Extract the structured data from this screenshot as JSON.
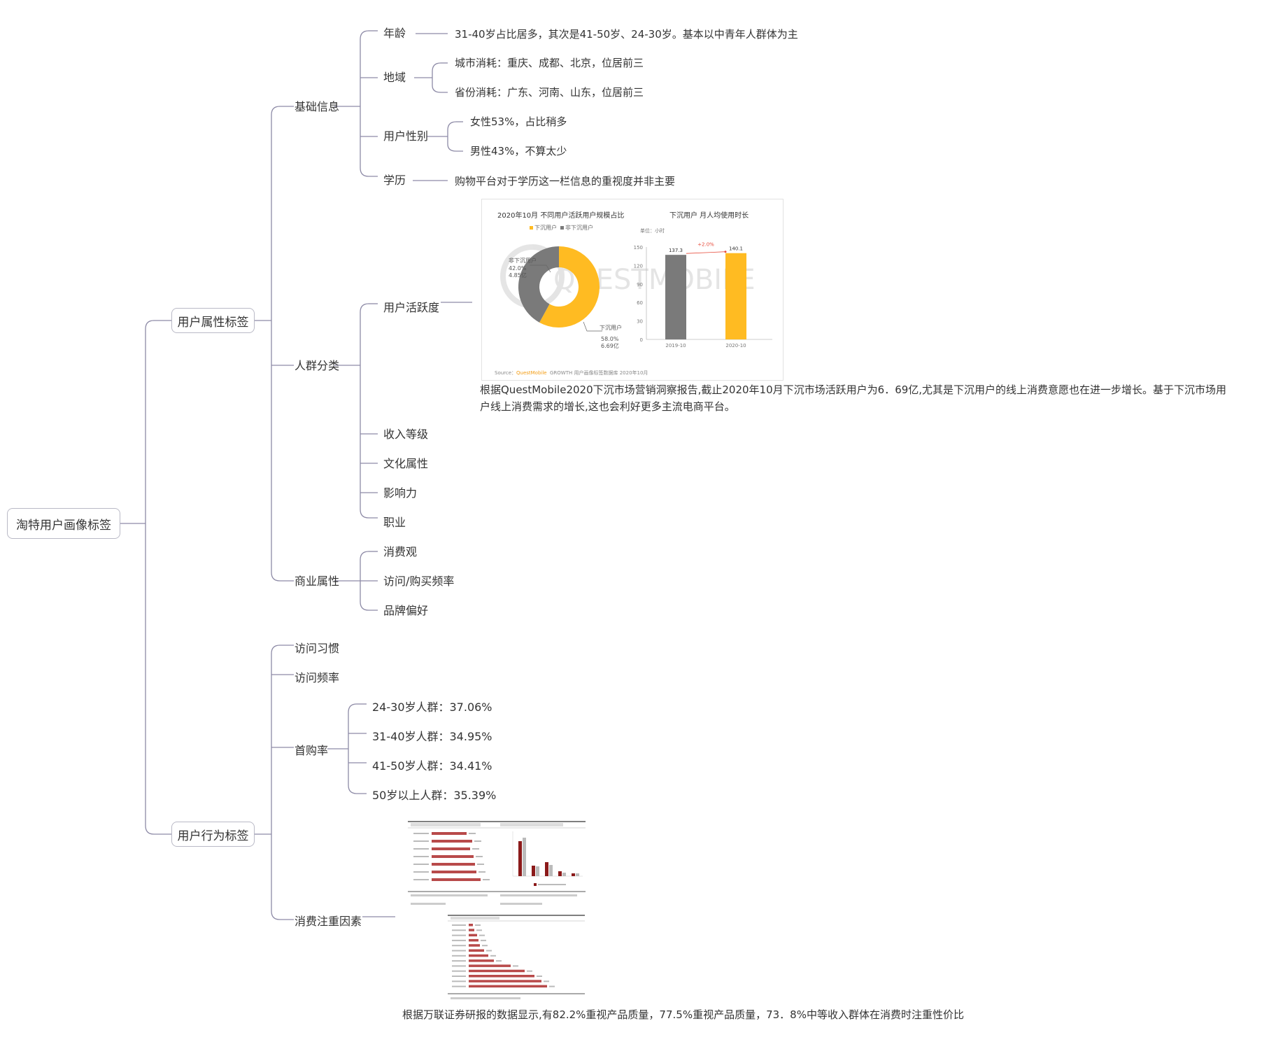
{
  "root": {
    "label": "淘特用户画像标签"
  },
  "attr": {
    "label": "用户属性标签",
    "basic": {
      "label": "基础信息",
      "age": {
        "label": "年龄",
        "note": "31-40岁占比居多，其次是41-50岁、24-30岁。基本以中青年人群体为主"
      },
      "region": {
        "label": "地域",
        "city": "城市消耗：重庆、成都、北京，位居前三",
        "province": "省份消耗：广东、河南、山东，位居前三"
      },
      "gender": {
        "label": "用户性别",
        "female": "女性53%，占比稍多",
        "male": "男性43%，不算太少"
      },
      "edu": {
        "label": "学历",
        "note": "购物平台对于学历这一栏信息的重视度并非主要"
      }
    },
    "crowd": {
      "label": "人群分类",
      "activity": {
        "label": "用户活跃度",
        "figure": {
          "donut_title": "2020年10月 不同用户活跃用户规模占比",
          "legend_sink": "下沉用户",
          "legend_nonsink": "非下沉用户",
          "nonsink_label": "非下沉用户",
          "nonsink_pct": "42.0%",
          "nonsink_val": "4.85亿",
          "sink_label": "下沉用户",
          "sink_pct": "58.0%",
          "sink_val": "6.69亿",
          "bar_title": "下沉用户 月人均使用时长",
          "unit": "单位：小时",
          "yticks": [
            "150",
            "120",
            "90",
            "60",
            "30",
            "0"
          ],
          "bar1_cat": "2019-10",
          "bar1_val": "137.3",
          "bar2_cat": "2020-10",
          "bar2_val": "140.1",
          "growth": "+2.0%",
          "watermark": "QUESTMOBILE",
          "source_prefix": "Source：",
          "source_brand": "QuestMobile",
          "source_rest": " GROWTH 用户画像标签数据库 2020年10月"
        },
        "note": "根据QuestMobile2020下沉市场营销洞察报告,截止2020年10月下沉市场活跃用户为6．69亿,尤其是下沉用户的线上消费意愿也在进一步增长。基于下沉市场用户线上消费需求的增长,这也会利好更多主流电商平台。"
      },
      "income": "收入等级",
      "culture": "文化属性",
      "influence": "影响力",
      "job": "职业"
    },
    "biz": {
      "label": "商业属性",
      "items": [
        "消费观",
        "访问/购买频率",
        "品牌偏好"
      ]
    }
  },
  "behavior": {
    "label": "用户行为标签",
    "visit_habit": "访问习惯",
    "visit_freq": "访问频率",
    "first": {
      "label": "首购率",
      "items": [
        "24-30岁人群：37.06%",
        "31-40岁人群：34.95%",
        "41-50岁人群：34.41%",
        "50岁以上人群：35.39%"
      ]
    },
    "factors": {
      "label": "消费注重因素",
      "note": "根据万联证券研报的数据显示,有82.2%重视产品质量，77.5%重视产品质量，73．8%中等收入群体在消费时注重性价比"
    }
  },
  "colors": {
    "line": "#8d8aa6",
    "border": "#b9b9c6",
    "orange": "#ffbb22",
    "gray": "#7a7a7a",
    "darkred": "#8b1a1a",
    "red": "#b84a4a"
  },
  "chart_data": [
    {
      "type": "pie",
      "title": "2020年10月 不同用户活跃用户规模占比",
      "categories": [
        "下沉用户",
        "非下沉用户"
      ],
      "values": [
        58.0,
        42.0
      ],
      "labels": [
        "6.69亿",
        "4.85亿"
      ],
      "legend": "top"
    },
    {
      "type": "bar",
      "title": "下沉用户 月人均使用时长",
      "categories": [
        "2019-10",
        "2020-10"
      ],
      "values": [
        137.3,
        140.1
      ],
      "ylabel": "单位：小时",
      "ylim": [
        0,
        150
      ],
      "annotations": [
        "+2.0%"
      ]
    }
  ]
}
